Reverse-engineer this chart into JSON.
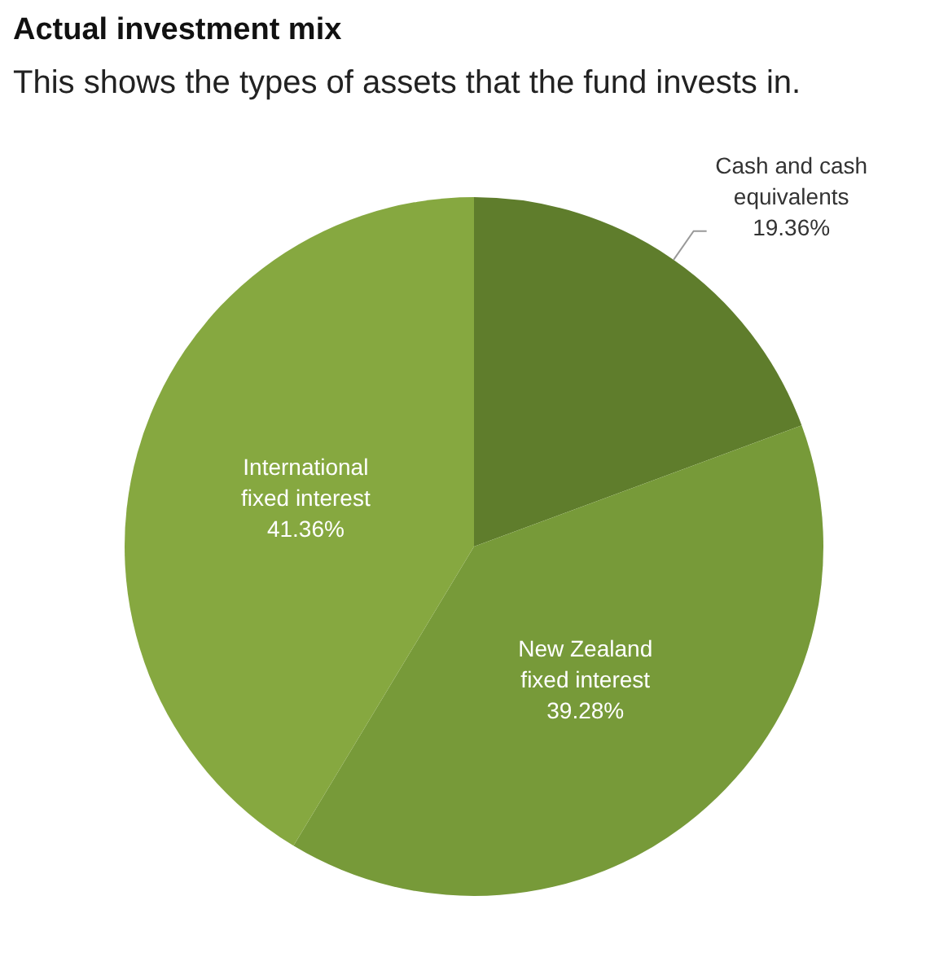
{
  "chart_data": {
    "type": "pie",
    "title": "Actual investment mix",
    "subtitle": "This shows the types of assets that the fund invests in.",
    "categories": [
      "Cash and cash equivalents",
      "New Zealand fixed interest",
      "International fixed interest"
    ],
    "values": [
      19.36,
      39.28,
      41.36
    ],
    "value_labels": [
      "19.36%",
      "39.28%",
      "41.36%"
    ],
    "colors": [
      "#5f7d2c",
      "#779a39",
      "#86a840"
    ]
  }
}
